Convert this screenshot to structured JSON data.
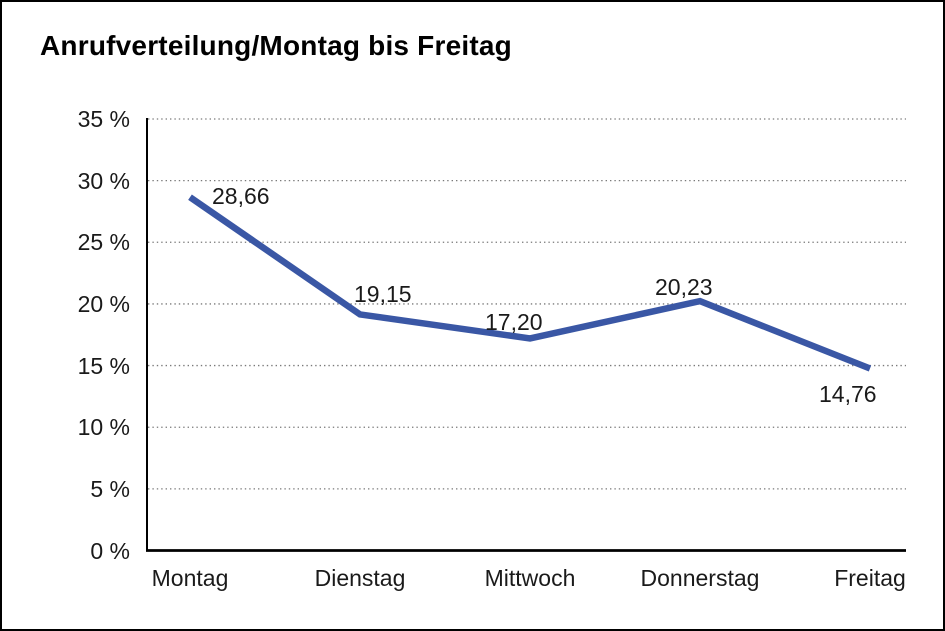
{
  "window": {
    "background": "#ffffff",
    "frame_border_color": "#000000"
  },
  "chart_data": {
    "type": "line",
    "title": "Anrufverteilung/Montag bis Freitag",
    "categories": [
      "Montag",
      "Dienstag",
      "Mittwoch",
      "Donnerstag",
      "Freitag"
    ],
    "values": [
      28.66,
      19.15,
      17.2,
      20.23,
      14.76
    ],
    "value_labels": [
      "28,66",
      "19,15",
      "17,20",
      "20,23",
      "14,76"
    ],
    "xlabel": "",
    "ylabel": "",
    "ylim": [
      0,
      35
    ],
    "ytick_step": 5,
    "ytick_labels": [
      "0 %",
      "5 %",
      "10 %",
      "15 %",
      "20 %",
      "25 %",
      "30 %",
      "35 %"
    ],
    "grid": "horizontal-dotted",
    "legend": "none",
    "line_color": "#3A57A5",
    "grid_color": "#7a7a7a",
    "axis_color": "#000000",
    "text_color": "#1a1a1a"
  }
}
